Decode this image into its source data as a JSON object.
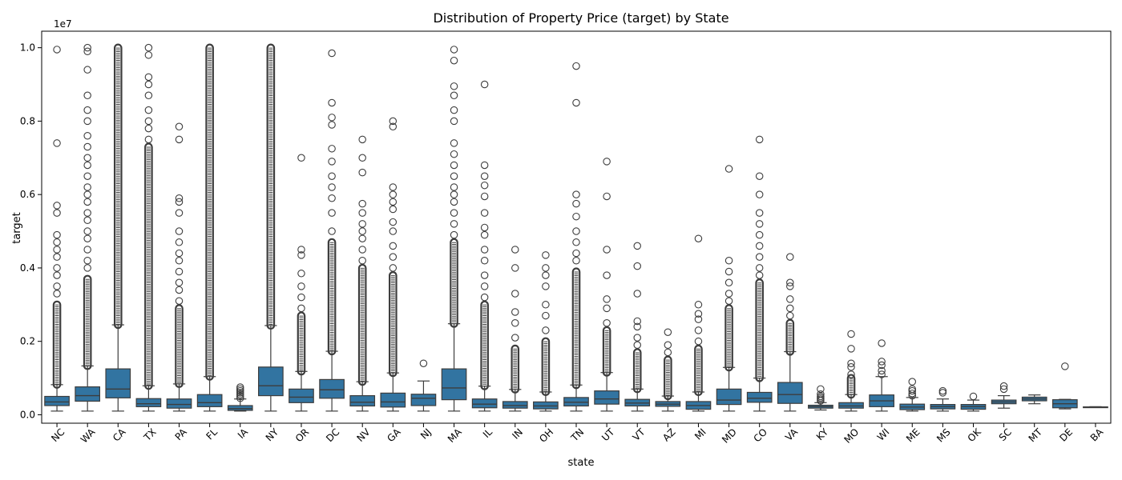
{
  "chart_data": {
    "type": "box",
    "title": "Distribution of Property Price (target) by State",
    "xlabel": "state",
    "ylabel": "target",
    "y_multiplier_label": "1e7",
    "ylim": [
      -3500000,
      10450000
    ],
    "yticks": [
      0.0,
      0.2,
      0.4,
      0.6,
      0.8,
      1.0
    ],
    "ytick_labels": [
      "0.0",
      "0.2",
      "0.4",
      "0.6",
      "0.8",
      "1.0"
    ],
    "y_scale_factor": 10000000,
    "box_color": "#3274a1",
    "grid": false,
    "legend": "none",
    "categories": [
      "NC",
      "WA",
      "CA",
      "TX",
      "PA",
      "FL",
      "IA",
      "NY",
      "OR",
      "DC",
      "NV",
      "GA",
      "NJ",
      "MA",
      "IL",
      "IN",
      "OH",
      "TN",
      "UT",
      "VT",
      "AZ",
      "MI",
      "MD",
      "CO",
      "VA",
      "KY",
      "MO",
      "WI",
      "ME",
      "MS",
      "OK",
      "SC",
      "MT",
      "DE",
      "BA"
    ],
    "boxes": [
      {
        "state": "NC",
        "whislo": 100000,
        "q1": 250000,
        "med": 350000,
        "q3": 500000,
        "whishi": 820000,
        "dense_outliers": [
          820000,
          3000000
        ],
        "outliers": [
          3300000,
          3500000,
          3800000,
          4000000,
          4300000,
          4500000,
          4700000,
          4900000,
          5500000,
          5700000,
          7400000,
          9950000
        ]
      },
      {
        "state": "WA",
        "whislo": 100000,
        "q1": 370000,
        "med": 520000,
        "q3": 760000,
        "whishi": 1330000,
        "dense_outliers": [
          1330000,
          3700000
        ],
        "outliers": [
          4000000,
          4200000,
          4500000,
          4800000,
          5000000,
          5300000,
          5500000,
          5800000,
          6000000,
          6200000,
          6500000,
          6800000,
          7000000,
          7300000,
          7600000,
          8000000,
          8300000,
          8700000,
          9400000,
          9900000,
          10000000
        ]
      },
      {
        "state": "CA",
        "whislo": 100000,
        "q1": 460000,
        "med": 700000,
        "q3": 1250000,
        "whishi": 2450000,
        "dense_outliers": [
          2450000,
          10000000
        ],
        "outliers": []
      },
      {
        "state": "TX",
        "whislo": 100000,
        "q1": 220000,
        "med": 300000,
        "q3": 440000,
        "whishi": 790000,
        "dense_outliers": [
          790000,
          7300000
        ],
        "outliers": [
          7500000,
          7800000,
          8000000,
          8300000,
          8700000,
          9000000,
          9200000,
          9800000,
          10000000
        ]
      },
      {
        "state": "PA",
        "whislo": 100000,
        "q1": 180000,
        "med": 280000,
        "q3": 430000,
        "whishi": 840000,
        "dense_outliers": [
          840000,
          2900000
        ],
        "outliers": [
          3100000,
          3400000,
          3600000,
          3900000,
          4200000,
          4400000,
          4700000,
          5000000,
          5500000,
          5800000,
          5900000,
          7500000,
          7850000
        ]
      },
      {
        "state": "FL",
        "whislo": 100000,
        "q1": 220000,
        "med": 330000,
        "q3": 550000,
        "whishi": 1040000,
        "dense_outliers": [
          1040000,
          10000000
        ],
        "outliers": []
      },
      {
        "state": "IA",
        "whislo": 100000,
        "q1": 120000,
        "med": 170000,
        "q3": 250000,
        "whishi": 430000,
        "dense_outliers": [],
        "outliers": [
          450000,
          500000,
          550000,
          600000,
          650000,
          700000,
          750000
        ]
      },
      {
        "state": "NY",
        "whislo": 100000,
        "q1": 520000,
        "med": 790000,
        "q3": 1300000,
        "whishi": 2430000,
        "dense_outliers": [
          2430000,
          10000000
        ],
        "outliers": []
      },
      {
        "state": "OR",
        "whislo": 100000,
        "q1": 330000,
        "med": 480000,
        "q3": 700000,
        "whishi": 1180000,
        "dense_outliers": [
          1180000,
          2700000
        ],
        "outliers": [
          2900000,
          3200000,
          3500000,
          3850000,
          4350000,
          4500000,
          7000000
        ]
      },
      {
        "state": "DC",
        "whislo": 100000,
        "q1": 450000,
        "med": 680000,
        "q3": 960000,
        "whishi": 1730000,
        "dense_outliers": [
          1730000,
          4700000
        ],
        "outliers": [
          5000000,
          5500000,
          5900000,
          6200000,
          6500000,
          6900000,
          7250000,
          7900000,
          8100000,
          8500000,
          9850000
        ]
      },
      {
        "state": "NV",
        "whislo": 100000,
        "q1": 240000,
        "med": 340000,
        "q3": 520000,
        "whishi": 900000,
        "dense_outliers": [
          900000,
          4000000
        ],
        "outliers": [
          4200000,
          4500000,
          4800000,
          5000000,
          5200000,
          5500000,
          5750000,
          6600000,
          7000000,
          7500000
        ]
      },
      {
        "state": "GA",
        "whislo": 100000,
        "q1": 210000,
        "med": 350000,
        "q3": 590000,
        "whishi": 1140000,
        "dense_outliers": [
          1140000,
          3800000
        ],
        "outliers": [
          4000000,
          4300000,
          4600000,
          5000000,
          5250000,
          5600000,
          5800000,
          6000000,
          6200000,
          7850000,
          8000000
        ]
      },
      {
        "state": "NJ",
        "whislo": 100000,
        "q1": 250000,
        "med": 450000,
        "q3": 560000,
        "whishi": 920000,
        "dense_outliers": [],
        "outliers": [
          1400000
        ]
      },
      {
        "state": "MA",
        "whislo": 100000,
        "q1": 410000,
        "med": 730000,
        "q3": 1250000,
        "whishi": 2480000,
        "dense_outliers": [
          2480000,
          4700000
        ],
        "outliers": [
          4900000,
          5200000,
          5500000,
          5800000,
          6000000,
          6200000,
          6500000,
          6800000,
          7100000,
          7400000,
          8000000,
          8300000,
          8700000,
          8950000,
          9650000,
          9950000
        ]
      },
      {
        "state": "IL",
        "whislo": 100000,
        "q1": 190000,
        "med": 290000,
        "q3": 430000,
        "whishi": 780000,
        "dense_outliers": [
          780000,
          3000000
        ],
        "outliers": [
          3200000,
          3500000,
          3800000,
          4200000,
          4500000,
          4900000,
          5100000,
          5500000,
          5950000,
          6250000,
          6500000,
          6800000,
          9000000
        ]
      },
      {
        "state": "IN",
        "whislo": 100000,
        "q1": 180000,
        "med": 250000,
        "q3": 360000,
        "whishi": 690000,
        "dense_outliers": [
          690000,
          1800000
        ],
        "outliers": [
          2100000,
          2500000,
          2800000,
          3300000,
          4000000,
          4500000
        ]
      },
      {
        "state": "OH",
        "whislo": 100000,
        "q1": 160000,
        "med": 240000,
        "q3": 350000,
        "whishi": 620000,
        "dense_outliers": [
          620000,
          2000000
        ],
        "outliers": [
          2300000,
          2700000,
          3000000,
          3500000,
          3800000,
          4000000,
          4350000
        ]
      },
      {
        "state": "TN",
        "whislo": 100000,
        "q1": 240000,
        "med": 340000,
        "q3": 470000,
        "whishi": 810000,
        "dense_outliers": [
          810000,
          3900000
        ],
        "outliers": [
          4200000,
          4400000,
          4700000,
          5000000,
          5400000,
          5750000,
          6000000,
          8500000,
          9500000
        ]
      },
      {
        "state": "UT",
        "whislo": 100000,
        "q1": 290000,
        "med": 430000,
        "q3": 650000,
        "whishi": 1150000,
        "dense_outliers": [
          1150000,
          2300000
        ],
        "outliers": [
          2500000,
          2900000,
          3150000,
          3800000,
          4500000,
          5950000,
          6900000
        ]
      },
      {
        "state": "VT",
        "whislo": 100000,
        "q1": 240000,
        "med": 320000,
        "q3": 420000,
        "whishi": 700000,
        "dense_outliers": [
          700000,
          1700000
        ],
        "outliers": [
          1900000,
          2100000,
          2400000,
          2550000,
          3300000,
          4050000,
          4600000
        ]
      },
      {
        "state": "AZ",
        "whislo": 100000,
        "q1": 230000,
        "med": 290000,
        "q3": 360000,
        "whishi": 510000,
        "dense_outliers": [
          510000,
          1500000
        ],
        "outliers": [
          1700000,
          1900000,
          2250000
        ]
      },
      {
        "state": "MI",
        "whislo": 100000,
        "q1": 150000,
        "med": 250000,
        "q3": 360000,
        "whishi": 620000,
        "dense_outliers": [
          620000,
          1800000
        ],
        "outliers": [
          2000000,
          2300000,
          2600000,
          2750000,
          3000000,
          4800000
        ]
      },
      {
        "state": "MD",
        "whislo": 100000,
        "q1": 280000,
        "med": 400000,
        "q3": 700000,
        "whishi": 1290000,
        "dense_outliers": [
          1290000,
          2900000
        ],
        "outliers": [
          3100000,
          3300000,
          3600000,
          3900000,
          4200000,
          6700000
        ]
      },
      {
        "state": "CO",
        "whislo": 100000,
        "q1": 340000,
        "med": 450000,
        "q3": 610000,
        "whishi": 1000000,
        "dense_outliers": [
          1000000,
          3600000
        ],
        "outliers": [
          3800000,
          4000000,
          4300000,
          4600000,
          4900000,
          5200000,
          5500000,
          6000000,
          6500000,
          7500000
        ]
      },
      {
        "state": "VA",
        "whislo": 100000,
        "q1": 310000,
        "med": 550000,
        "q3": 880000,
        "whishi": 1720000,
        "dense_outliers": [
          1720000,
          2500000
        ],
        "outliers": [
          2700000,
          2900000,
          3150000,
          3500000,
          3600000,
          4300000
        ]
      },
      {
        "state": "KY",
        "whislo": 130000,
        "q1": 180000,
        "med": 220000,
        "q3": 260000,
        "whishi": 330000,
        "dense_outliers": [],
        "outliers": [
          380000,
          420000,
          460000,
          500000,
          560000,
          700000
        ]
      },
      {
        "state": "MO",
        "whislo": 100000,
        "q1": 180000,
        "med": 240000,
        "q3": 330000,
        "whishi": 550000,
        "dense_outliers": [
          550000,
          1000000
        ],
        "outliers": [
          1100000,
          1300000,
          1400000,
          1800000,
          2200000
        ]
      },
      {
        "state": "WI",
        "whislo": 100000,
        "q1": 220000,
        "med": 380000,
        "q3": 540000,
        "whishi": 1040000,
        "dense_outliers": [],
        "outliers": [
          1100000,
          1200000,
          1350000,
          1450000,
          1950000
        ]
      },
      {
        "state": "ME",
        "whislo": 100000,
        "q1": 140000,
        "med": 210000,
        "q3": 290000,
        "whishi": 470000,
        "dense_outliers": [],
        "outliers": [
          520000,
          580000,
          650000,
          700000,
          900000
        ]
      },
      {
        "state": "MS",
        "whislo": 100000,
        "q1": 160000,
        "med": 220000,
        "q3": 280000,
        "whishi": 430000,
        "dense_outliers": [],
        "outliers": [
          600000,
          650000
        ]
      },
      {
        "state": "OK",
        "whislo": 100000,
        "q1": 150000,
        "med": 220000,
        "q3": 280000,
        "whishi": 400000,
        "dense_outliers": [],
        "outliers": [
          500000
        ]
      },
      {
        "state": "SC",
        "whislo": 180000,
        "q1": 300000,
        "med": 350000,
        "q3": 400000,
        "whishi": 520000,
        "dense_outliers": [],
        "outliers": [
          700000,
          780000
        ]
      },
      {
        "state": "MT",
        "whislo": 300000,
        "q1": 380000,
        "med": 430000,
        "q3": 480000,
        "whishi": 540000,
        "dense_outliers": [],
        "outliers": []
      },
      {
        "state": "DE",
        "whislo": 160000,
        "q1": 190000,
        "med": 300000,
        "q3": 410000,
        "whishi": 420000,
        "dense_outliers": [],
        "outliers": [
          1320000
        ]
      },
      {
        "state": "BA",
        "whislo": 200000,
        "q1": 205000,
        "med": 210000,
        "q3": 215000,
        "whishi": 220000,
        "dense_outliers": [],
        "outliers": []
      }
    ]
  }
}
